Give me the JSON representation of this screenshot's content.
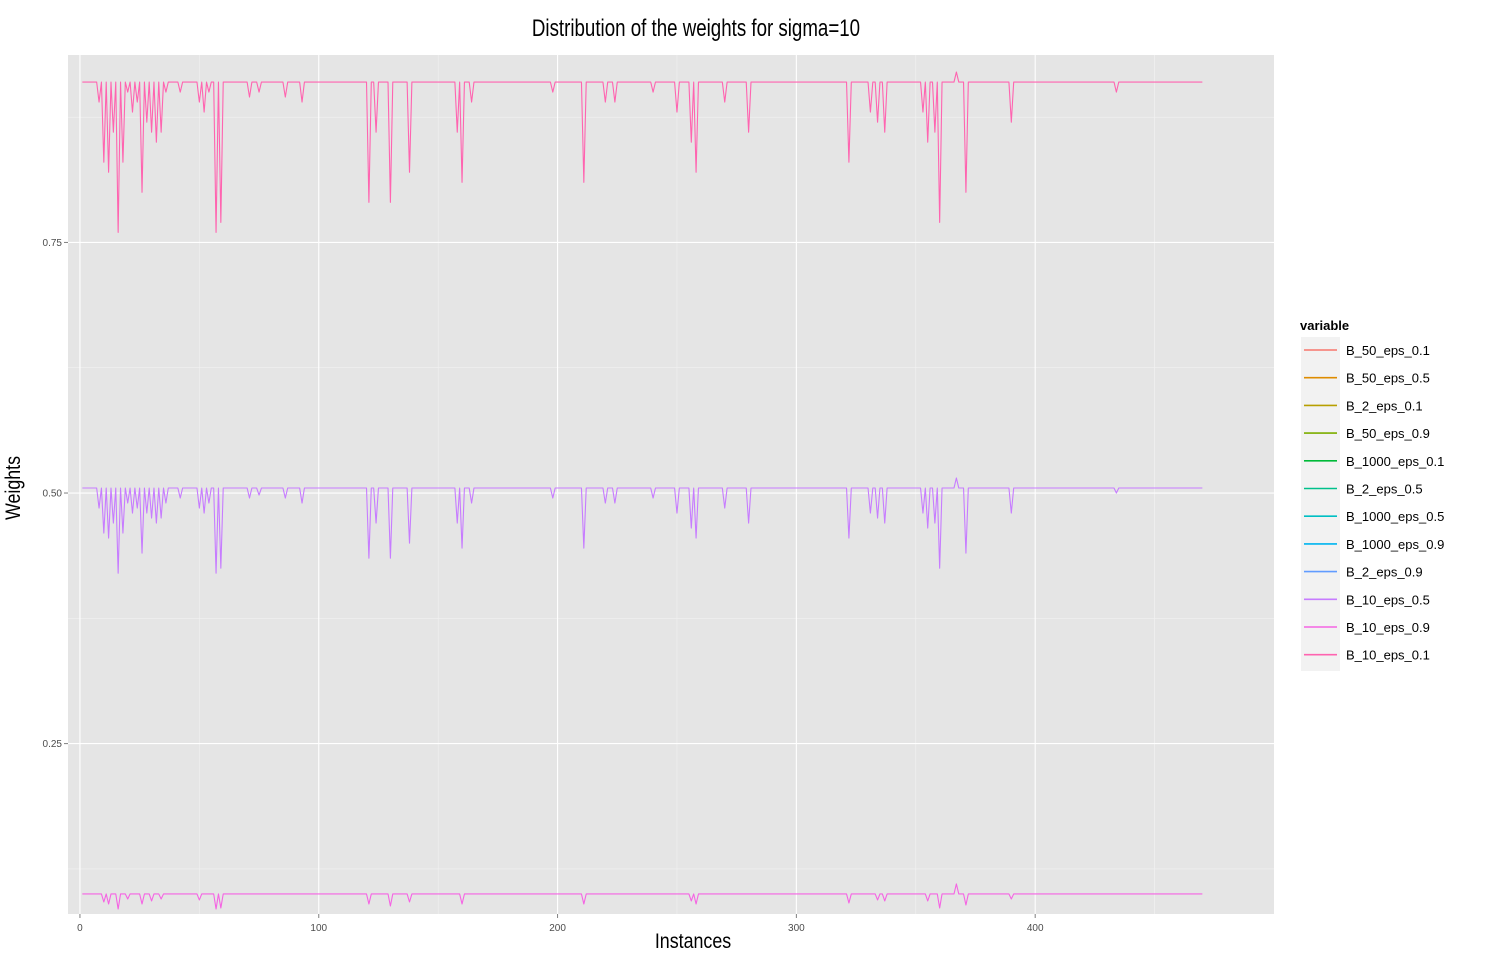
{
  "chart_data": {
    "type": "line",
    "title": "Distribution of the weights for sigma=10",
    "xlabel": "Instances",
    "ylabel": "Weights",
    "xlim": [
      -5,
      500
    ],
    "ylim": [
      0.08,
      0.937
    ],
    "x_ticks": [
      0,
      100,
      200,
      300,
      400
    ],
    "y_ticks": [
      0.25,
      0.5,
      0.75
    ],
    "y_tick_labels": [
      "0.25",
      "0.50",
      "0.75"
    ],
    "grid": true,
    "legend": {
      "title": "variable",
      "position": "right",
      "entries": [
        {
          "name": "B_50_eps_0.1",
          "color": "#F8766D"
        },
        {
          "name": "B_50_eps_0.5",
          "color": "#DE8C00"
        },
        {
          "name": "B_2_eps_0.1",
          "color": "#B79F00"
        },
        {
          "name": "B_50_eps_0.9",
          "color": "#7CAE00"
        },
        {
          "name": "B_1000_eps_0.1",
          "color": "#00BA38"
        },
        {
          "name": "B_2_eps_0.5",
          "color": "#00C08B"
        },
        {
          "name": "B_1000_eps_0.5",
          "color": "#00BFC4"
        },
        {
          "name": "B_1000_eps_0.9",
          "color": "#00B4F0"
        },
        {
          "name": "B_2_eps_0.9",
          "color": "#619CFF"
        },
        {
          "name": "B_10_eps_0.5",
          "color": "#C77CFF"
        },
        {
          "name": "B_10_eps_0.9",
          "color": "#F564E3"
        },
        {
          "name": "B_10_eps_0.1",
          "color": "#FF64B0"
        }
      ]
    },
    "series": [
      {
        "name": "B_10_eps_0.1",
        "color": "#FF64B0",
        "n_instances": 470,
        "baseline": 0.91,
        "peaks": [
          [
            367,
            0.92
          ]
        ],
        "dips": [
          [
            8,
            0.89
          ],
          [
            10,
            0.83
          ],
          [
            12,
            0.82
          ],
          [
            14,
            0.86
          ],
          [
            16,
            0.76
          ],
          [
            18,
            0.83
          ],
          [
            20,
            0.9
          ],
          [
            22,
            0.88
          ],
          [
            24,
            0.89
          ],
          [
            26,
            0.8
          ],
          [
            28,
            0.87
          ],
          [
            30,
            0.86
          ],
          [
            32,
            0.85
          ],
          [
            34,
            0.86
          ],
          [
            36,
            0.9
          ],
          [
            42,
            0.9
          ],
          [
            50,
            0.89
          ],
          [
            52,
            0.88
          ],
          [
            54,
            0.9
          ],
          [
            57,
            0.76
          ],
          [
            59,
            0.77
          ],
          [
            71,
            0.895
          ],
          [
            75,
            0.9
          ],
          [
            86,
            0.895
          ],
          [
            93,
            0.89
          ],
          [
            121,
            0.79
          ],
          [
            124,
            0.86
          ],
          [
            130,
            0.79
          ],
          [
            138,
            0.82
          ],
          [
            158,
            0.86
          ],
          [
            160,
            0.81
          ],
          [
            164,
            0.89
          ],
          [
            198,
            0.9
          ],
          [
            211,
            0.81
          ],
          [
            220,
            0.89
          ],
          [
            224,
            0.89
          ],
          [
            240,
            0.9
          ],
          [
            250,
            0.88
          ],
          [
            256,
            0.85
          ],
          [
            258,
            0.82
          ],
          [
            270,
            0.89
          ],
          [
            280,
            0.86
          ],
          [
            322,
            0.83
          ],
          [
            331,
            0.88
          ],
          [
            334,
            0.87
          ],
          [
            337,
            0.86
          ],
          [
            353,
            0.88
          ],
          [
            355,
            0.85
          ],
          [
            358,
            0.86
          ],
          [
            360,
            0.77
          ],
          [
            371,
            0.8
          ],
          [
            390,
            0.87
          ],
          [
            434,
            0.9
          ]
        ]
      },
      {
        "name": "B_10_eps_0.5",
        "color": "#C77CFF",
        "n_instances": 470,
        "baseline": 0.505,
        "peaks": [
          [
            367,
            0.515
          ]
        ],
        "dips": [
          [
            8,
            0.485
          ],
          [
            10,
            0.46
          ],
          [
            12,
            0.455
          ],
          [
            14,
            0.47
          ],
          [
            16,
            0.42
          ],
          [
            18,
            0.46
          ],
          [
            20,
            0.49
          ],
          [
            22,
            0.48
          ],
          [
            24,
            0.485
          ],
          [
            26,
            0.44
          ],
          [
            28,
            0.48
          ],
          [
            30,
            0.475
          ],
          [
            32,
            0.47
          ],
          [
            34,
            0.475
          ],
          [
            36,
            0.49
          ],
          [
            42,
            0.495
          ],
          [
            50,
            0.485
          ],
          [
            52,
            0.48
          ],
          [
            54,
            0.49
          ],
          [
            57,
            0.42
          ],
          [
            59,
            0.425
          ],
          [
            71,
            0.495
          ],
          [
            75,
            0.498
          ],
          [
            86,
            0.495
          ],
          [
            93,
            0.49
          ],
          [
            121,
            0.435
          ],
          [
            124,
            0.47
          ],
          [
            130,
            0.435
          ],
          [
            138,
            0.45
          ],
          [
            158,
            0.47
          ],
          [
            160,
            0.445
          ],
          [
            164,
            0.49
          ],
          [
            198,
            0.495
          ],
          [
            211,
            0.445
          ],
          [
            220,
            0.49
          ],
          [
            224,
            0.49
          ],
          [
            240,
            0.495
          ],
          [
            250,
            0.48
          ],
          [
            256,
            0.465
          ],
          [
            258,
            0.455
          ],
          [
            270,
            0.485
          ],
          [
            280,
            0.47
          ],
          [
            322,
            0.455
          ],
          [
            331,
            0.48
          ],
          [
            334,
            0.475
          ],
          [
            337,
            0.47
          ],
          [
            353,
            0.48
          ],
          [
            355,
            0.465
          ],
          [
            358,
            0.47
          ],
          [
            360,
            0.425
          ],
          [
            371,
            0.44
          ],
          [
            390,
            0.48
          ],
          [
            434,
            0.5
          ]
        ]
      },
      {
        "name": "B_10_eps_0.9",
        "color": "#F564E3",
        "n_instances": 470,
        "baseline": 0.1,
        "peaks": [
          [
            367,
            0.11
          ]
        ],
        "dips": [
          [
            10,
            0.092
          ],
          [
            12,
            0.09
          ],
          [
            16,
            0.085
          ],
          [
            20,
            0.095
          ],
          [
            26,
            0.09
          ],
          [
            30,
            0.093
          ],
          [
            34,
            0.095
          ],
          [
            50,
            0.094
          ],
          [
            57,
            0.085
          ],
          [
            59,
            0.086
          ],
          [
            121,
            0.09
          ],
          [
            130,
            0.088
          ],
          [
            138,
            0.092
          ],
          [
            160,
            0.09
          ],
          [
            211,
            0.09
          ],
          [
            256,
            0.093
          ],
          [
            258,
            0.09
          ],
          [
            322,
            0.091
          ],
          [
            334,
            0.094
          ],
          [
            337,
            0.093
          ],
          [
            355,
            0.093
          ],
          [
            360,
            0.086
          ],
          [
            371,
            0.089
          ],
          [
            390,
            0.095
          ]
        ]
      }
    ]
  }
}
